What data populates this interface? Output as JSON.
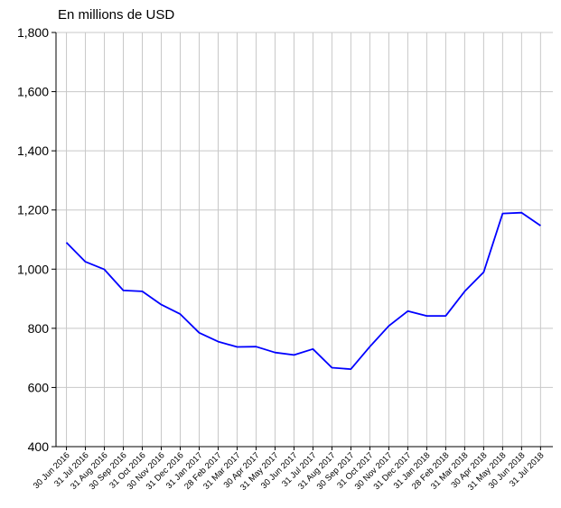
{
  "chart_data": {
    "type": "line",
    "unit_label": "En millions de USD",
    "title": "",
    "xlabel": "",
    "ylabel": "",
    "ylim": [
      400,
      1800
    ],
    "y_ticks": [
      "400",
      "600",
      "800",
      "1,000",
      "1,200",
      "1,400",
      "1,600",
      "1,800"
    ],
    "grid": true,
    "line_color": "#0000ff",
    "categories": [
      "30 Jun 2016",
      "31 Jul 2016",
      "31 Aug 2016",
      "30 Sep 2016",
      "31 Oct 2016",
      "30 Nov 2016",
      "31 Dec 2016",
      "31 Jan 2017",
      "28 Feb 2017",
      "31 Mar 2017",
      "30 Apr 2017",
      "31 May 2017",
      "30 Jun 2017",
      "31 Jul 2017",
      "31 Aug 2017",
      "30 Sep 2017",
      "31 Oct 2017",
      "30 Nov 2017",
      "31 Dec 2017",
      "31 Jan 2018",
      "28 Feb 2018",
      "31 Mar 2018",
      "30 Apr 2018",
      "31 May 2018",
      "30 Jun 2018",
      "31 Jul 2018"
    ],
    "series": [
      {
        "values": [
          1090,
          1025,
          999,
          928,
          925,
          880,
          848,
          785,
          755,
          737,
          738,
          718,
          710,
          730,
          667,
          662,
          738,
          808,
          858,
          842,
          842,
          925,
          990,
          1188,
          1191,
          1147
        ]
      }
    ]
  }
}
